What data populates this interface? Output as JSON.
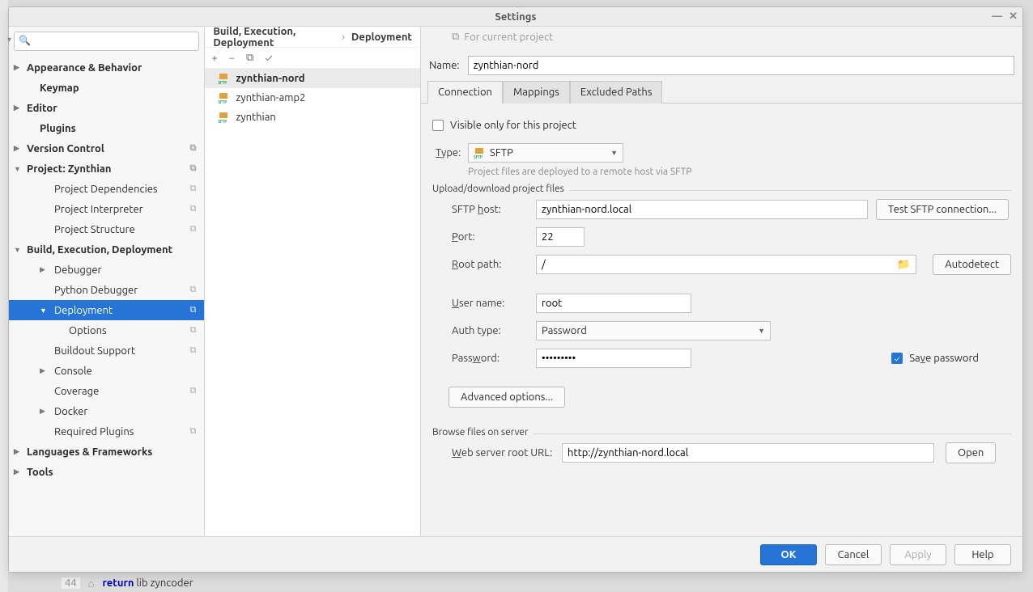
{
  "window": {
    "title": "Settings"
  },
  "nav": {
    "search_placeholder": "",
    "items": [
      {
        "label": "Appearance & Behavior",
        "bold": true,
        "arrow": "▶",
        "cls": "top"
      },
      {
        "label": "Keymap",
        "bold": true,
        "cls": "top indent1a"
      },
      {
        "label": "Editor",
        "bold": true,
        "arrow": "▶",
        "cls": "top"
      },
      {
        "label": "Plugins",
        "bold": true,
        "cls": "top indent1a"
      },
      {
        "label": "Version Control",
        "bold": true,
        "arrow": "▶",
        "cls": "top",
        "dup": true
      },
      {
        "label": "Project: Zynthian",
        "bold": true,
        "arrow": "▼",
        "cls": "top",
        "dup": true
      },
      {
        "label": "Project Dependencies",
        "cls": "indent2",
        "dup": true
      },
      {
        "label": "Project Interpreter",
        "cls": "indent2",
        "dup": true
      },
      {
        "label": "Project Structure",
        "cls": "indent2",
        "dup": true
      },
      {
        "label": "Build, Execution, Deployment",
        "bold": true,
        "arrow": "▼",
        "cls": "top"
      },
      {
        "label": "Debugger",
        "arrow": "▶",
        "cls": "indent1"
      },
      {
        "label": "Python Debugger",
        "cls": "indent2",
        "dup": true
      },
      {
        "label": "Deployment",
        "arrow": "▼",
        "cls": "indent1",
        "dup": true,
        "selected": true
      },
      {
        "label": "Options",
        "cls": "indent3",
        "dup": true
      },
      {
        "label": "Buildout Support",
        "cls": "indent2",
        "dup": true
      },
      {
        "label": "Console",
        "arrow": "▶",
        "cls": "indent1"
      },
      {
        "label": "Coverage",
        "cls": "indent2",
        "dup": true
      },
      {
        "label": "Docker",
        "arrow": "▶",
        "cls": "indent1"
      },
      {
        "label": "Required Plugins",
        "cls": "indent2",
        "dup": true
      },
      {
        "label": "Languages & Frameworks",
        "bold": true,
        "arrow": "▶",
        "cls": "top"
      },
      {
        "label": "Tools",
        "bold": true,
        "arrow": "▶",
        "cls": "top"
      }
    ]
  },
  "breadcrumb": {
    "a": "Build, Execution, Deployment",
    "b": "Deployment"
  },
  "hint": "For current project",
  "mid_toolbar": {
    "add": "+",
    "remove": "−",
    "copy": "⧉",
    "check": "✓"
  },
  "servers": [
    {
      "label": "zynthian-nord",
      "selected": true
    },
    {
      "label": "zynthian-amp2"
    },
    {
      "label": "zynthian"
    }
  ],
  "form": {
    "name_label": "Name:",
    "name_value": "zynthian-nord",
    "tabs": {
      "connection": "Connection",
      "mappings": "Mappings",
      "excluded": "Excluded Paths"
    },
    "visible_label": "Visible only for this project",
    "type_label": "Type:",
    "type_value": "SFTP",
    "type_help": "Project files are deployed to a remote host via SFTP",
    "upload_legend": "Upload/download project files",
    "sftp_host_label": "SFTP host:",
    "sftp_host_value": "zynthian-nord.local",
    "test_btn": "Test SFTP connection...",
    "port_label": "Port:",
    "port_value": "22",
    "root_label": "Root path:",
    "root_value": "/",
    "autodetect_btn": "Autodetect",
    "user_label": "User name:",
    "user_value": "root",
    "auth_label": "Auth type:",
    "auth_value": "Password",
    "pw_label": "Password:",
    "pw_value": "•••••••••",
    "save_pw_label": "Save password",
    "adv_btn": "Advanced options...",
    "browse_legend": "Browse files on server",
    "web_root_label": "Web server root URL:",
    "web_root_value": "http://zynthian-nord.local",
    "open_btn": "Open"
  },
  "footer": {
    "ok": "OK",
    "cancel": "Cancel",
    "apply": "Apply",
    "help": "Help"
  },
  "underline": {
    "lineno": "44",
    "kw": "return",
    "rest": "lib zyncoder"
  }
}
